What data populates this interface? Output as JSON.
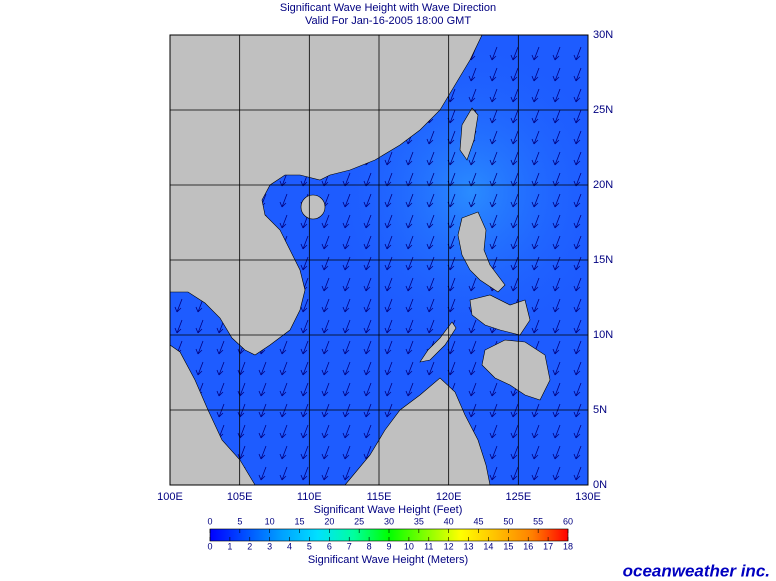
{
  "chart_data": {
    "type": "map",
    "title": "Significant Wave Height with Wave Direction",
    "subtitle": "Valid For Jan-16-2005 18:00 GMT",
    "xlim": [
      100,
      130
    ],
    "ylim": [
      0,
      30
    ],
    "xticks": [
      {
        "value": 100,
        "label": "100E"
      },
      {
        "value": 105,
        "label": "105E"
      },
      {
        "value": 110,
        "label": "110E"
      },
      {
        "value": 115,
        "label": "115E"
      },
      {
        "value": 120,
        "label": "120E"
      },
      {
        "value": 125,
        "label": "125E"
      },
      {
        "value": 130,
        "label": "130E"
      }
    ],
    "yticks": [
      {
        "value": 0,
        "label": "0N"
      },
      {
        "value": 5,
        "label": "5N"
      },
      {
        "value": 10,
        "label": "10N"
      },
      {
        "value": 15,
        "label": "15N"
      },
      {
        "value": 20,
        "label": "20N"
      },
      {
        "value": 25,
        "label": "25N"
      },
      {
        "value": 30,
        "label": "30N"
      }
    ],
    "grid": true,
    "colorbar": {
      "title_top": "Significant Wave Height (Feet)",
      "title_bottom": "Significant Wave Height (Meters)",
      "feet_lim": [
        0,
        60
      ],
      "feet_ticks": [
        0,
        5,
        10,
        15,
        20,
        25,
        30,
        35,
        40,
        45,
        50,
        55,
        60
      ],
      "meters_lim": [
        0,
        18
      ],
      "meters_ticks": [
        0,
        1,
        2,
        3,
        4,
        5,
        6,
        7,
        8,
        9,
        10,
        11,
        12,
        13,
        14,
        15,
        16,
        17,
        18
      ],
      "colors": [
        "#0000ff",
        "#0050ff",
        "#00a0ff",
        "#00e0ff",
        "#00ffa0",
        "#00ff00",
        "#80ff00",
        "#ffff00",
        "#ffc000",
        "#ff8000",
        "#ff0000"
      ]
    },
    "logo": "oceanweather inc."
  }
}
